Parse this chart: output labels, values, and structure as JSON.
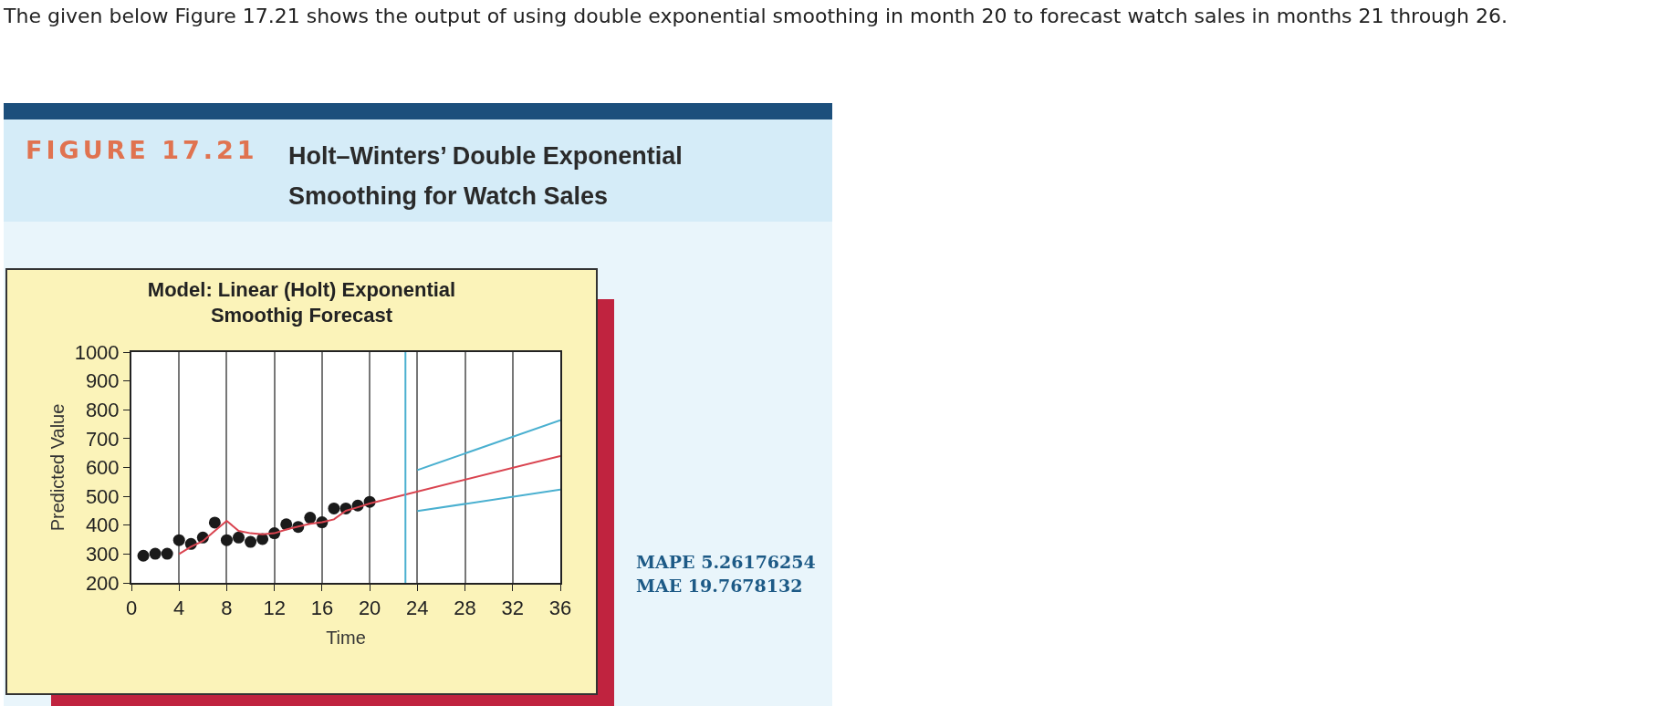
{
  "chart_data": {
    "type": "scatter",
    "title": "Holt–Winters’ Double Exponential Smoothing for Watch Sales",
    "subtitle": "Model: Linear (Holt) Exponential Smoothig Forecast",
    "xlabel": "Time",
    "ylabel": "Predicted Value",
    "annotations": [
      "The given below Figure 17.21 shows the output of using double exponential smoothing in month 20 to forecast watch sales in months 21 through 26.",
      "FIGURE 17.21",
      "MAPE 5.26176254",
      "MAE 19.7678132"
    ],
    "series": [
      {
        "color": "#1a1a1a",
        "marker": "circle",
        "x": [
          1,
          2,
          3,
          4,
          5,
          6,
          7,
          8,
          9,
          10,
          11,
          12,
          13,
          14,
          15,
          16,
          17,
          18,
          19,
          20
        ],
        "values": [
          294,
          301,
          301,
          348,
          335,
          357,
          409,
          348,
          357,
          342,
          352,
          372,
          403,
          394,
          426,
          410,
          458,
          458,
          468,
          481
        ]
      },
      {
        "type": "line",
        "color": "#d9434f",
        "x": [
          4,
          5,
          6,
          7,
          8,
          9,
          10,
          11,
          12,
          13,
          14,
          15,
          16,
          17,
          18,
          19,
          20,
          36
        ],
        "values": [
          300,
          325,
          345,
          380,
          415,
          380,
          372,
          368,
          372,
          385,
          395,
          405,
          410,
          420,
          450,
          462,
          475,
          640
        ]
      },
      {
        "type": "line",
        "color": "#4ab0d0",
        "x": [
          24,
          36
        ],
        "values": [
          591,
          764
        ]
      },
      {
        "type": "line",
        "color": "#4ab0d0",
        "x": [
          24,
          36
        ],
        "values": [
          449,
          523
        ]
      }
    ],
    "ref_lines": [
      {
        "axis": "x",
        "value": 23,
        "color": "#4ab0d0"
      }
    ],
    "xlim": [
      0,
      36
    ],
    "xticks": [
      0,
      4,
      8,
      12,
      16,
      20,
      24,
      28,
      32,
      36
    ],
    "ylim": [
      200,
      1000
    ],
    "yticks": [
      200,
      300,
      400,
      500,
      600,
      700,
      800,
      900,
      1000
    ],
    "grid": "x"
  }
}
